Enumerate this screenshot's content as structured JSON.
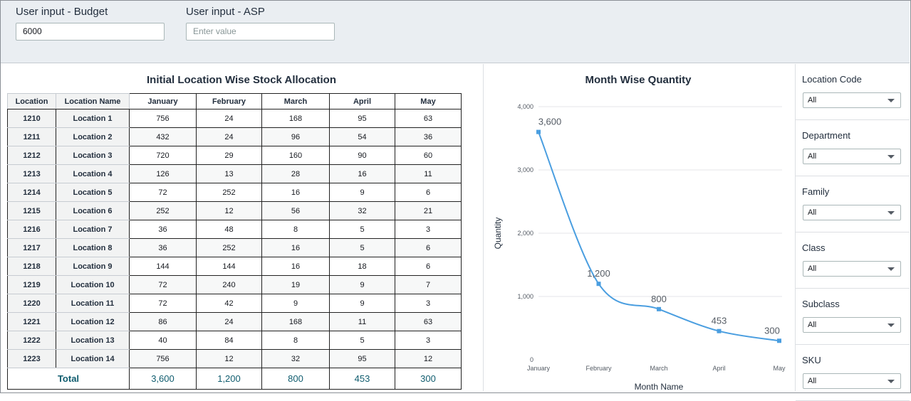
{
  "inputs": {
    "budget": {
      "label": "User input - Budget",
      "value": "6000"
    },
    "asp": {
      "label": "User input - ASP",
      "placeholder": "Enter value"
    }
  },
  "table": {
    "title": "Initial Location Wise Stock Allocation",
    "headers": [
      "Location",
      "Location Name",
      "January",
      "February",
      "March",
      "April",
      "May"
    ],
    "rows": [
      [
        "1210",
        "Location 1",
        "756",
        "24",
        "168",
        "95",
        "63"
      ],
      [
        "1211",
        "Location 2",
        "432",
        "24",
        "96",
        "54",
        "36"
      ],
      [
        "1212",
        "Location 3",
        "720",
        "29",
        "160",
        "90",
        "60"
      ],
      [
        "1213",
        "Location 4",
        "126",
        "13",
        "28",
        "16",
        "11"
      ],
      [
        "1214",
        "Location 5",
        "72",
        "252",
        "16",
        "9",
        "6"
      ],
      [
        "1215",
        "Location 6",
        "252",
        "12",
        "56",
        "32",
        "21"
      ],
      [
        "1216",
        "Location 7",
        "36",
        "48",
        "8",
        "5",
        "3"
      ],
      [
        "1217",
        "Location 8",
        "36",
        "252",
        "16",
        "5",
        "6"
      ],
      [
        "1218",
        "Location 9",
        "144",
        "144",
        "16",
        "18",
        "6"
      ],
      [
        "1219",
        "Location 10",
        "72",
        "240",
        "19",
        "9",
        "7"
      ],
      [
        "1220",
        "Location 11",
        "72",
        "42",
        "9",
        "9",
        "3"
      ],
      [
        "1221",
        "Location 12",
        "86",
        "24",
        "168",
        "11",
        "63"
      ],
      [
        "1222",
        "Location 13",
        "40",
        "84",
        "8",
        "5",
        "3"
      ],
      [
        "1223",
        "Location 14",
        "756",
        "12",
        "32",
        "95",
        "12"
      ]
    ],
    "total_label": "Total",
    "totals": [
      "3,600",
      "1,200",
      "800",
      "453",
      "300"
    ]
  },
  "chart_data": {
    "type": "line",
    "title": "Month Wise Quantity",
    "xlabel": "Month Name",
    "ylabel": "Quantity",
    "categories": [
      "January",
      "February",
      "March",
      "April",
      "May"
    ],
    "values": [
      3600,
      1200,
      800,
      453,
      300
    ],
    "value_labels": [
      "3,600",
      "1,200",
      "800",
      "453",
      "300"
    ],
    "ylim": [
      0,
      4000
    ],
    "yticks": [
      0,
      1000,
      2000,
      3000,
      4000
    ],
    "ytick_labels": [
      "0",
      "1,000",
      "2,000",
      "3,000",
      "4,000"
    ],
    "color": "#4a9ee0",
    "grid": true
  },
  "filters": [
    {
      "label": "Location Code",
      "value": "All"
    },
    {
      "label": "Department",
      "value": "All"
    },
    {
      "label": "Family",
      "value": "All"
    },
    {
      "label": "Class",
      "value": "All"
    },
    {
      "label": "Subclass",
      "value": "All"
    },
    {
      "label": "SKU",
      "value": "All"
    }
  ]
}
